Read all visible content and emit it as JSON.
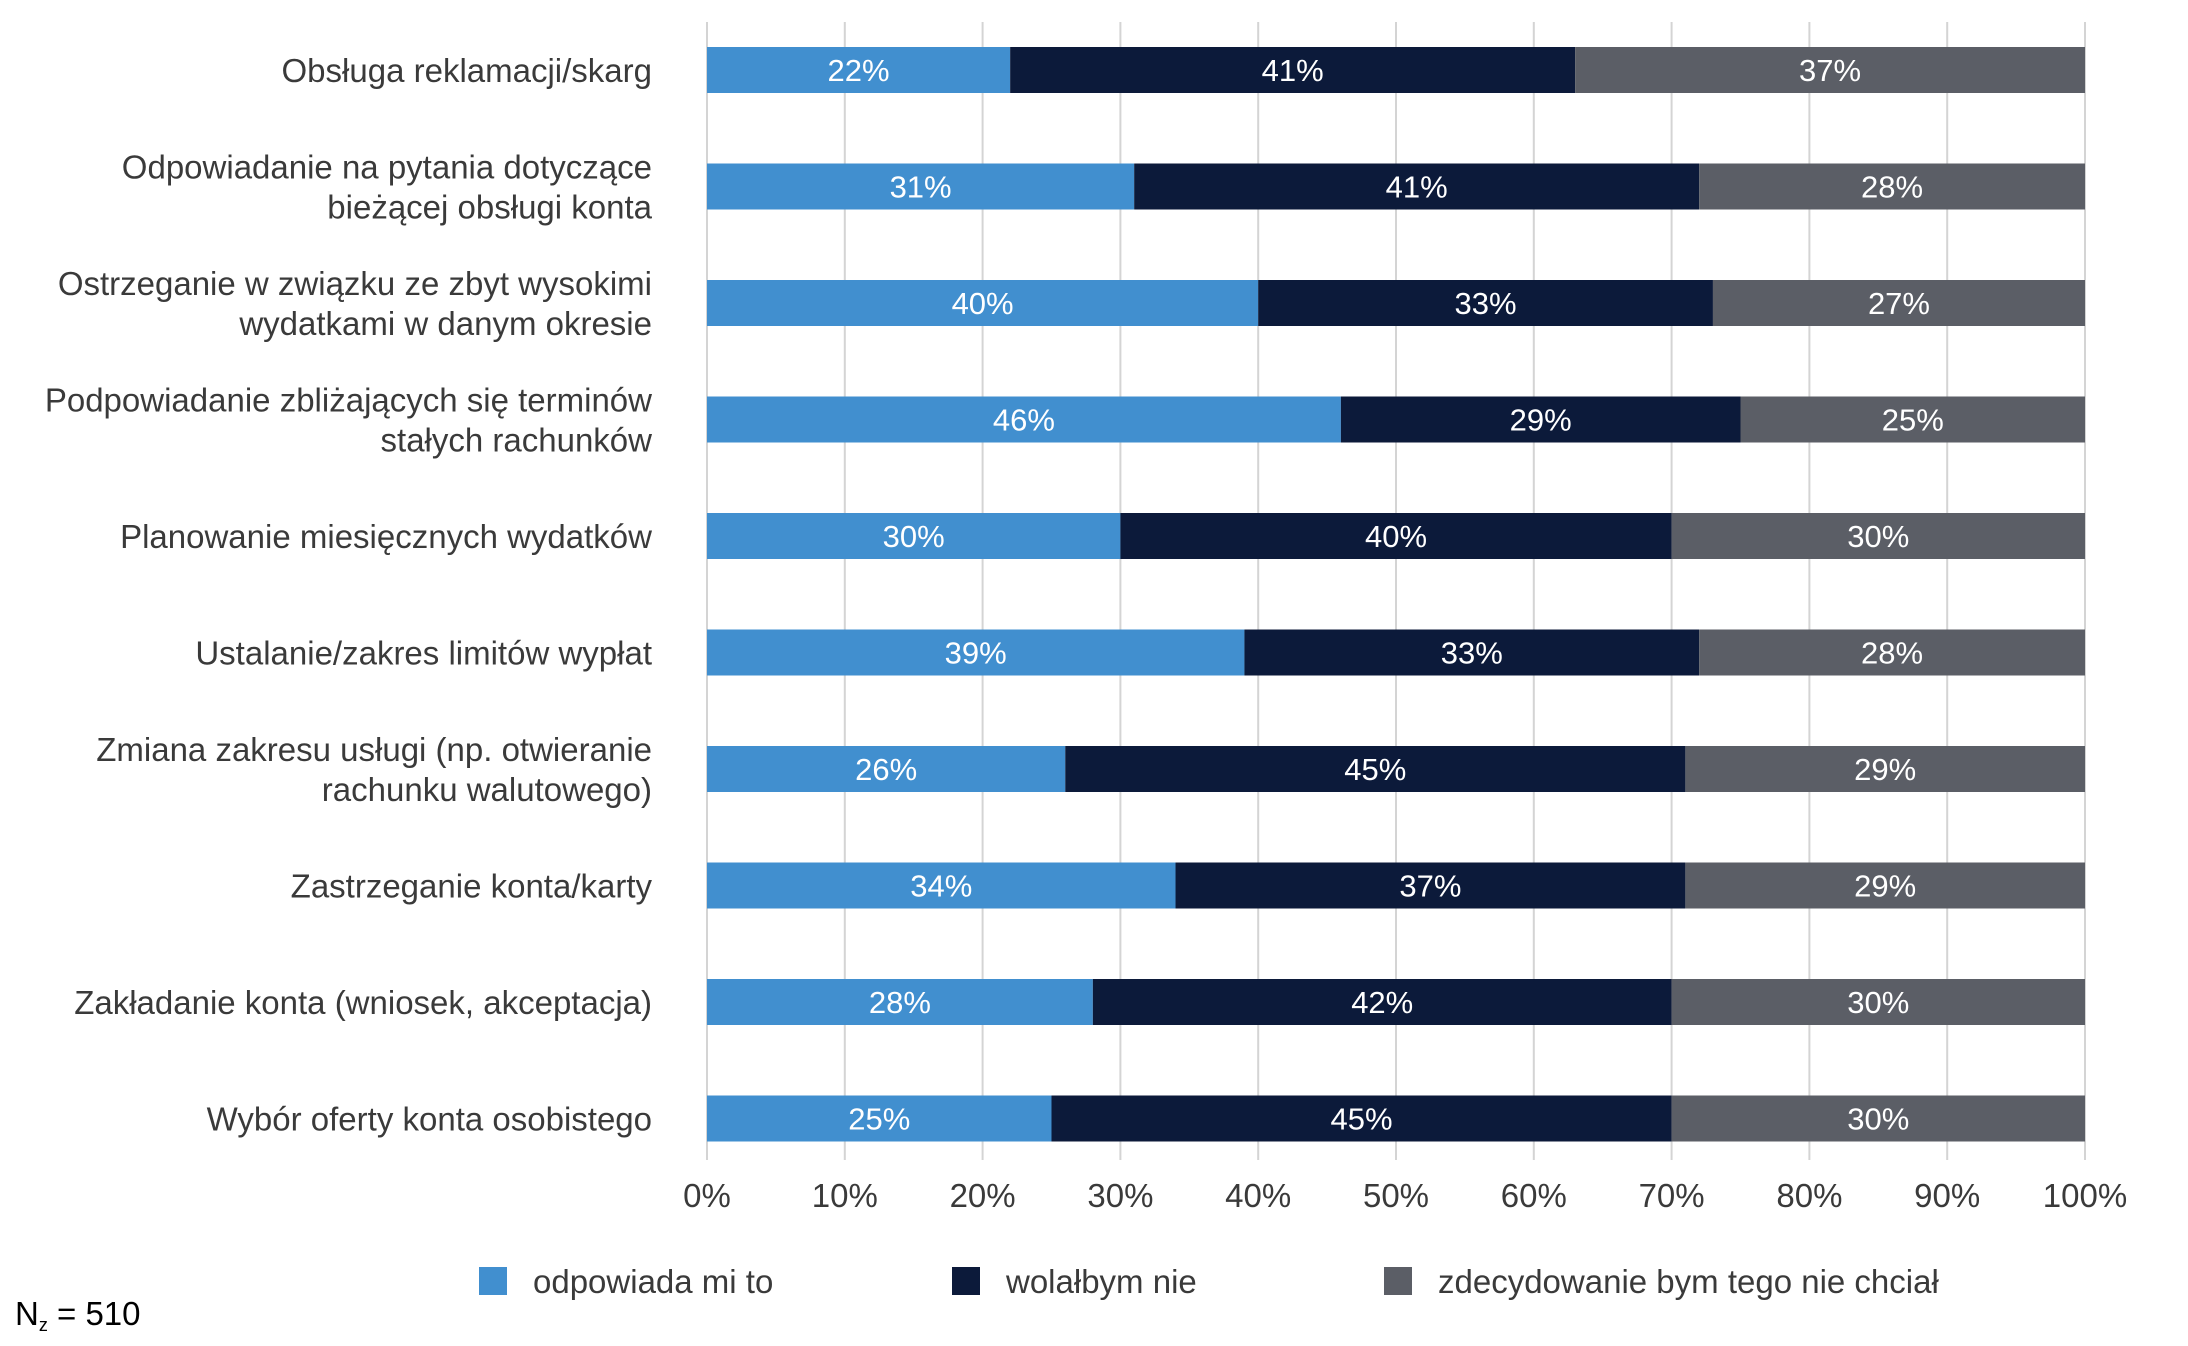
{
  "chart_data": {
    "type": "bar",
    "orientation": "horizontal",
    "stacked": true,
    "title": "",
    "xlabel": "",
    "ylabel": "",
    "xlim": [
      0,
      100
    ],
    "grid": true,
    "legend_position": "bottom",
    "x_ticks": [
      "0%",
      "10%",
      "20%",
      "30%",
      "40%",
      "50%",
      "60%",
      "70%",
      "80%",
      "90%",
      "100%"
    ],
    "categories": [
      [
        "Obsługa reklamacji/skarg"
      ],
      [
        "Odpowiadanie na pytania dotyczące",
        "bieżącej obsługi konta"
      ],
      [
        "Ostrzeganie w związku ze zbyt wysokimi",
        "wydatkami w danym okresie"
      ],
      [
        "Podpowiadanie zbliżających się terminów",
        "stałych rachunków"
      ],
      [
        "Planowanie miesięcznych wydatków"
      ],
      [
        "Ustalanie/zakres limitów wypłat"
      ],
      [
        "Zmiana zakresu usługi (np. otwieranie",
        "rachunku walutowego)"
      ],
      [
        "Zastrzeganie konta/karty"
      ],
      [
        "Zakładanie konta (wniosek, akceptacja)"
      ],
      [
        "Wybór oferty konta osobistego"
      ]
    ],
    "series": [
      {
        "name": "odpowiada mi to",
        "color": "#418fcf",
        "values": [
          22,
          31,
          40,
          46,
          30,
          39,
          26,
          34,
          28,
          25
        ]
      },
      {
        "name": "wolałbym nie",
        "color": "#0c1a3a",
        "values": [
          41,
          41,
          33,
          29,
          40,
          33,
          45,
          37,
          42,
          45
        ]
      },
      {
        "name": "zdecydowanie bym tego nie chciał",
        "color": "#5b5e66",
        "values": [
          37,
          28,
          27,
          25,
          30,
          28,
          29,
          29,
          30,
          30
        ]
      }
    ],
    "value_suffix": "%"
  },
  "note": {
    "prefix": "N",
    "subscript": "z",
    "suffix": " = 510"
  }
}
